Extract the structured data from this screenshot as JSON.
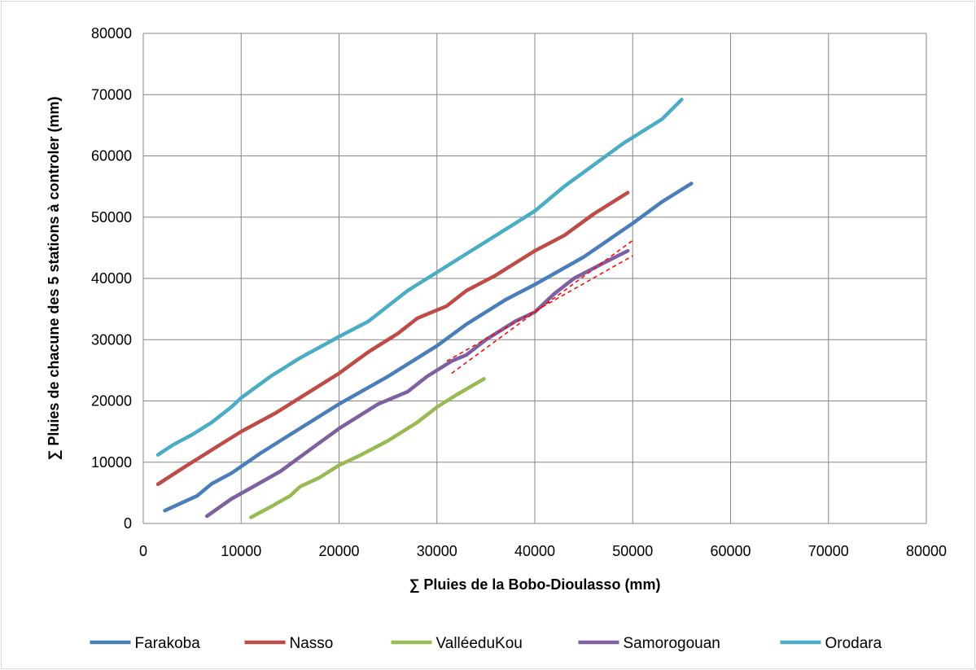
{
  "chart_data": {
    "type": "line",
    "title": "",
    "xlabel": "∑ Pluies  de  la Bobo-Dioulasso (mm)",
    "ylabel": "∑ Pluies de chacune   des 5 stations à controler  (mm)",
    "xlim": [
      0,
      80000
    ],
    "ylim": [
      0,
      80000
    ],
    "xticks": [
      0,
      10000,
      20000,
      30000,
      40000,
      50000,
      60000,
      70000,
      80000
    ],
    "yticks": [
      0,
      10000,
      20000,
      30000,
      40000,
      50000,
      60000,
      70000,
      80000
    ],
    "grid": true,
    "legend_position": "bottom",
    "series": [
      {
        "name": "Farakoba",
        "color": "#4a7ebb",
        "points": [
          [
            2200,
            2100
          ],
          [
            5500,
            4500
          ],
          [
            7000,
            6500
          ],
          [
            9000,
            8200
          ],
          [
            12000,
            11500
          ],
          [
            15000,
            14500
          ],
          [
            20000,
            19500
          ],
          [
            25000,
            24000
          ],
          [
            30000,
            29000
          ],
          [
            33000,
            32500
          ],
          [
            37000,
            36500
          ],
          [
            40000,
            39000
          ],
          [
            45000,
            43500
          ],
          [
            50000,
            49000
          ],
          [
            53000,
            52500
          ],
          [
            56000,
            55500
          ]
        ]
      },
      {
        "name": "Nasso",
        "color": "#be4b48",
        "points": [
          [
            1500,
            6400
          ],
          [
            4000,
            9000
          ],
          [
            5500,
            10500
          ],
          [
            7500,
            12500
          ],
          [
            10000,
            15000
          ],
          [
            13500,
            18000
          ],
          [
            16000,
            20500
          ],
          [
            20000,
            24500
          ],
          [
            23000,
            28000
          ],
          [
            26000,
            31000
          ],
          [
            28000,
            33500
          ],
          [
            31000,
            35500
          ],
          [
            33000,
            38000
          ],
          [
            36000,
            40500
          ],
          [
            40000,
            44500
          ],
          [
            43000,
            47000
          ],
          [
            46000,
            50500
          ],
          [
            49500,
            54000
          ]
        ]
      },
      {
        "name": "ValléeduKou",
        "color": "#98b954",
        "points": [
          [
            11000,
            1000
          ],
          [
            13000,
            2700
          ],
          [
            15000,
            4500
          ],
          [
            16000,
            6000
          ],
          [
            18000,
            7500
          ],
          [
            20000,
            9500
          ],
          [
            22000,
            11000
          ],
          [
            25000,
            13500
          ],
          [
            28000,
            16500
          ],
          [
            30000,
            19000
          ],
          [
            32000,
            21000
          ],
          [
            34800,
            23600
          ]
        ]
      },
      {
        "name": "Samorogouan",
        "color": "#7d60a0",
        "points": [
          [
            6500,
            1200
          ],
          [
            9000,
            4000
          ],
          [
            11000,
            5800
          ],
          [
            14000,
            8500
          ],
          [
            17000,
            12000
          ],
          [
            20000,
            15500
          ],
          [
            22000,
            17500
          ],
          [
            24000,
            19500
          ],
          [
            27000,
            21500
          ],
          [
            29000,
            24000
          ],
          [
            31500,
            26500
          ],
          [
            33000,
            27500
          ],
          [
            35000,
            30000
          ],
          [
            38000,
            33000
          ],
          [
            40000,
            34500
          ],
          [
            42000,
            37500
          ],
          [
            44000,
            40000
          ],
          [
            47000,
            42500
          ],
          [
            49500,
            44500
          ]
        ]
      },
      {
        "name": "Orodara",
        "color": "#4bacc6",
        "points": [
          [
            1500,
            11200
          ],
          [
            3000,
            12800
          ],
          [
            5000,
            14500
          ],
          [
            7000,
            16500
          ],
          [
            9000,
            19000
          ],
          [
            10000,
            20500
          ],
          [
            13000,
            24000
          ],
          [
            16000,
            27000
          ],
          [
            20000,
            30500
          ],
          [
            23000,
            33000
          ],
          [
            25000,
            35500
          ],
          [
            27000,
            38000
          ],
          [
            30000,
            41000
          ],
          [
            32000,
            43000
          ],
          [
            35000,
            46000
          ],
          [
            38000,
            49000
          ],
          [
            40000,
            51000
          ],
          [
            43000,
            55000
          ],
          [
            46000,
            58500
          ],
          [
            49000,
            62000
          ],
          [
            51000,
            64000
          ],
          [
            53000,
            66000
          ],
          [
            55000,
            69200
          ]
        ]
      }
    ],
    "trend_lines": [
      {
        "color": "#ff0000",
        "style": "dashed",
        "points": [
          [
            31500,
            24500
          ],
          [
            50000,
            46200
          ]
        ]
      },
      {
        "color": "#ff0000",
        "style": "dashed",
        "points": [
          [
            31000,
            26500
          ],
          [
            50000,
            43700
          ]
        ]
      }
    ]
  }
}
